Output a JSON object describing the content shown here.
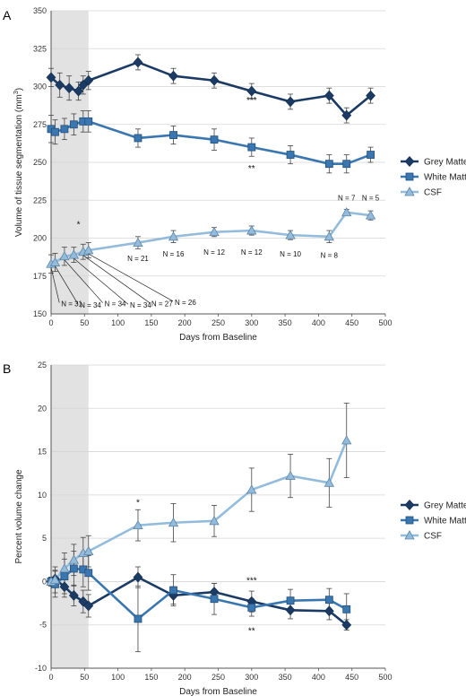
{
  "chart_data": [
    {
      "panel": "A",
      "type": "line",
      "xlabel": "Days from Baseline",
      "ylabel": "Volume of tissue segmentation (mm3)",
      "ylabel_main": "Volume of tissue segmentation (mm",
      "ylabel_sup": "3",
      "ylabel_end": ")",
      "xlim": [
        0,
        500
      ],
      "ylim": [
        150,
        350
      ],
      "xticks": [
        0,
        50,
        100,
        150,
        200,
        250,
        300,
        350,
        400,
        450,
        500
      ],
      "yticks": [
        150,
        175,
        200,
        225,
        250,
        275,
        300,
        325,
        350
      ],
      "grid": true,
      "shaded_region": [
        0,
        56
      ],
      "legend_position": "right",
      "series": [
        {
          "name": "Grey Matter",
          "marker": "diamond",
          "color": "#1b3a64",
          "x": [
            0,
            13,
            27,
            41,
            48,
            56,
            130,
            183,
            244,
            300,
            358,
            416,
            442,
            478
          ],
          "y": [
            306,
            301,
            299,
            297,
            301,
            304,
            316,
            307,
            304,
            297,
            290,
            294,
            281,
            294
          ],
          "err": [
            6,
            8,
            8,
            6,
            6,
            6,
            5,
            5,
            5,
            5,
            5,
            5,
            5,
            5
          ]
        },
        {
          "name": "White Matter",
          "marker": "square",
          "color": "#3a77b0",
          "x": [
            0,
            6,
            20,
            34,
            48,
            56,
            130,
            183,
            244,
            300,
            358,
            416,
            442,
            478
          ],
          "y": [
            272,
            270,
            272,
            275,
            277,
            277,
            266,
            268,
            265,
            260,
            255,
            249,
            249,
            255
          ],
          "err": [
            9,
            8,
            7,
            7,
            7,
            7,
            6,
            6,
            7,
            6,
            6,
            6,
            6,
            5
          ]
        },
        {
          "name": "CSF",
          "marker": "triangle",
          "color": "#93bbdc",
          "x": [
            0,
            6,
            20,
            34,
            48,
            56,
            130,
            183,
            244,
            300,
            358,
            416,
            442,
            478
          ],
          "y": [
            183,
            184,
            188,
            189,
            191,
            192,
            197,
            201,
            204,
            205,
            202,
            201,
            217,
            215
          ],
          "err": [
            6,
            6,
            6,
            5,
            5,
            5,
            4,
            4,
            3,
            3,
            3,
            4,
            2,
            3
          ]
        }
      ],
      "significance": [
        {
          "x": 300,
          "y": 289,
          "text": "***"
        },
        {
          "x": 300,
          "y": 244,
          "text": "**"
        },
        {
          "x": 41,
          "y": 207,
          "text": "*"
        }
      ],
      "n_labels": [
        {
          "x": 130,
          "y": 185,
          "text": "N = 21"
        },
        {
          "x": 183,
          "y": 188,
          "text": "N = 16"
        },
        {
          "x": 244,
          "y": 189,
          "text": "N = 12"
        },
        {
          "x": 300,
          "y": 189,
          "text": "N = 12"
        },
        {
          "x": 358,
          "y": 188,
          "text": "N = 10"
        },
        {
          "x": 416,
          "y": 187,
          "text": "N = 8"
        },
        {
          "x": 442,
          "y": 225,
          "text": "N = 7"
        },
        {
          "x": 478,
          "y": 225,
          "text": "N = 5"
        }
      ],
      "baseline_n_labels": [
        {
          "text": "N = 31",
          "lx": 15,
          "ly": 155
        },
        {
          "text": "N = 34",
          "lx": 43,
          "ly": 154
        },
        {
          "text": "N = 34",
          "lx": 80,
          "ly": 155
        },
        {
          "text": "N = 34",
          "lx": 118,
          "ly": 154
        },
        {
          "text": "N = 27",
          "lx": 150,
          "ly": 155
        },
        {
          "text": "N = 26",
          "lx": 185,
          "ly": 156
        }
      ]
    },
    {
      "panel": "B",
      "type": "line",
      "xlabel": "Days from Baseline",
      "ylabel": "Percent volume change",
      "xlim": [
        0,
        500
      ],
      "ylim": [
        -10,
        25
      ],
      "xticks": [
        0,
        50,
        100,
        150,
        200,
        250,
        300,
        350,
        400,
        450,
        500
      ],
      "yticks": [
        -10,
        -5,
        0,
        5,
        10,
        15,
        20,
        25
      ],
      "grid": true,
      "shaded_region": [
        0,
        56
      ],
      "legend_position": "right",
      "series": [
        {
          "name": "Grey Matter",
          "marker": "diamond",
          "color": "#1b3a64",
          "x": [
            0,
            6,
            20,
            34,
            48,
            56,
            130,
            183,
            244,
            300,
            358,
            416,
            442
          ],
          "y": [
            0,
            0.3,
            -0.6,
            -1.6,
            -2.3,
            -2.8,
            0.5,
            -1.6,
            -1.2,
            -2.3,
            -3.3,
            -3.4,
            -5.0
          ],
          "err": [
            0.5,
            1.0,
            1.2,
            1.2,
            1.3,
            1.3,
            1.2,
            1.0,
            1.0,
            1.2,
            1.0,
            1.0,
            0.6
          ]
        },
        {
          "name": "White Matter",
          "marker": "square",
          "color": "#3a77b0",
          "x": [
            0,
            6,
            20,
            34,
            48,
            56,
            130,
            183,
            244,
            300,
            358,
            416,
            442
          ],
          "y": [
            0,
            -0.3,
            0.6,
            1.5,
            1.4,
            1.0,
            -4.3,
            -1.0,
            -2.0,
            -3.0,
            -2.2,
            -2.1,
            -3.2
          ],
          "err": [
            0.5,
            1.5,
            2.0,
            2.0,
            2.0,
            2.0,
            3.8,
            1.8,
            1.8,
            1.0,
            1.3,
            1.3,
            1.8
          ]
        },
        {
          "name": "CSF",
          "marker": "triangle",
          "color": "#93bbdc",
          "x": [
            0,
            6,
            20,
            34,
            48,
            56,
            130,
            183,
            244,
            300,
            358,
            416,
            442
          ],
          "y": [
            0,
            0.2,
            1.5,
            2.5,
            3.3,
            3.5,
            6.5,
            6.8,
            7.0,
            10.6,
            12.2,
            11.4,
            16.3
          ],
          "err": [
            0.5,
            1.5,
            1.8,
            1.8,
            1.8,
            1.8,
            1.8,
            2.2,
            1.8,
            2.5,
            2.5,
            2.8,
            4.3
          ]
        }
      ],
      "significance": [
        {
          "x": 130,
          "y": 8.8,
          "text": "*"
        },
        {
          "x": 300,
          "y": -0.2,
          "text": "***"
        },
        {
          "x": 300,
          "y": -6.0,
          "text": "**"
        }
      ]
    }
  ]
}
